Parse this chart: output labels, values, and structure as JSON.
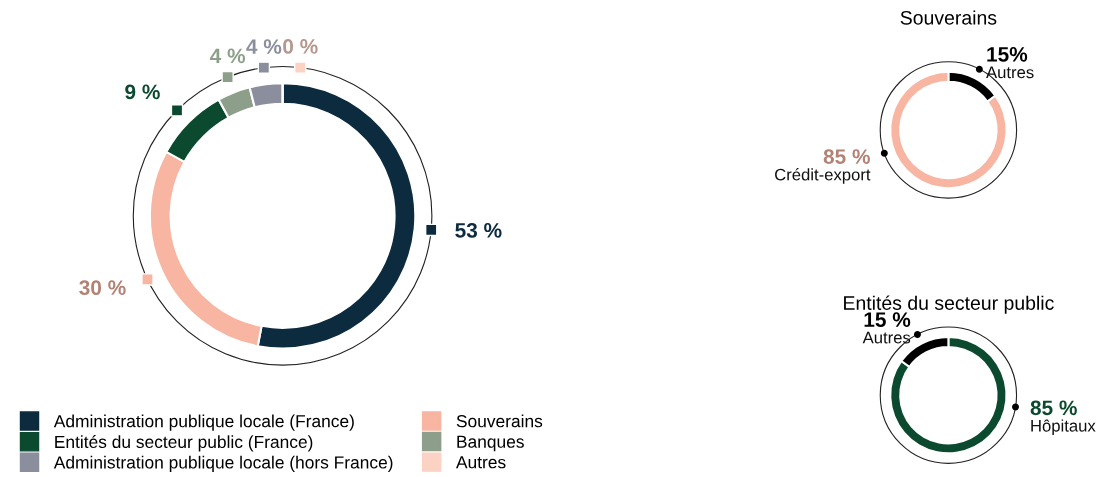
{
  "chart_data": [
    {
      "type": "donut",
      "categories": [
        "Administration publique locale (France)",
        "Souverains",
        "Entités du secteur public (France)",
        "Banques",
        "Administration publique locale (hors France)",
        "Autres"
      ],
      "values": [
        53,
        30,
        9,
        4,
        4,
        0
      ],
      "colors": [
        "#0d2b3e",
        "#f7b5a2",
        "#0b4a2e",
        "#8d9f8b",
        "#8b8e9c",
        "#fcd2c4"
      ],
      "value_labels": [
        "53 %",
        "30 %",
        "9 %",
        "4 %",
        "4 %",
        "0 %"
      ],
      "legend": "bottom left"
    },
    {
      "type": "donut",
      "title": "Souverains",
      "categories": [
        "Autres",
        "Crédit-export"
      ],
      "values": [
        15,
        85
      ],
      "colors": [
        "#000000",
        "#f7b5a2"
      ],
      "value_labels": [
        "15%",
        "85 %"
      ]
    },
    {
      "type": "donut",
      "title": "Entités du secteur public",
      "categories": [
        "Hôpitaux",
        "Autres"
      ],
      "values": [
        85,
        15
      ],
      "colors": [
        "#0b4a2e",
        "#000000"
      ],
      "value_labels": [
        "85 %",
        "15 %"
      ]
    }
  ]
}
